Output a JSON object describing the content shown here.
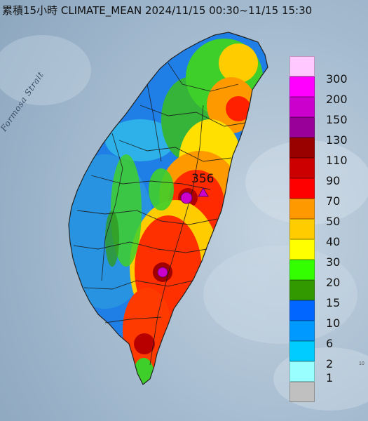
{
  "header": {
    "title": "累積15小時 CLIMATE_MEAN 2024/11/15 00:30~11/15 15:30"
  },
  "map": {
    "sea_label": "Formosa Strait",
    "max_marker_value": "356",
    "corner_text": "10"
  },
  "legend": {
    "items": [
      {
        "label": "300",
        "color": "#ffc8ff"
      },
      {
        "label": "200",
        "color": "#ff00ff"
      },
      {
        "label": "150",
        "color": "#cc00cc"
      },
      {
        "label": "130",
        "color": "#990099"
      },
      {
        "label": "110",
        "color": "#990000"
      },
      {
        "label": "90",
        "color": "#cc0000"
      },
      {
        "label": "70",
        "color": "#ff0000"
      },
      {
        "label": "50",
        "color": "#ff9900"
      },
      {
        "label": "40",
        "color": "#ffcc00"
      },
      {
        "label": "30",
        "color": "#ffff00"
      },
      {
        "label": "20",
        "color": "#33ff00"
      },
      {
        "label": "15",
        "color": "#339900"
      },
      {
        "label": "10",
        "color": "#0066ff"
      },
      {
        "label": "6",
        "color": "#0099ff"
      },
      {
        "label": "2",
        "color": "#00ccff"
      },
      {
        "label": "1",
        "color": "#99ffff"
      },
      {
        "label": "",
        "color": "#c0c0c0"
      }
    ]
  }
}
